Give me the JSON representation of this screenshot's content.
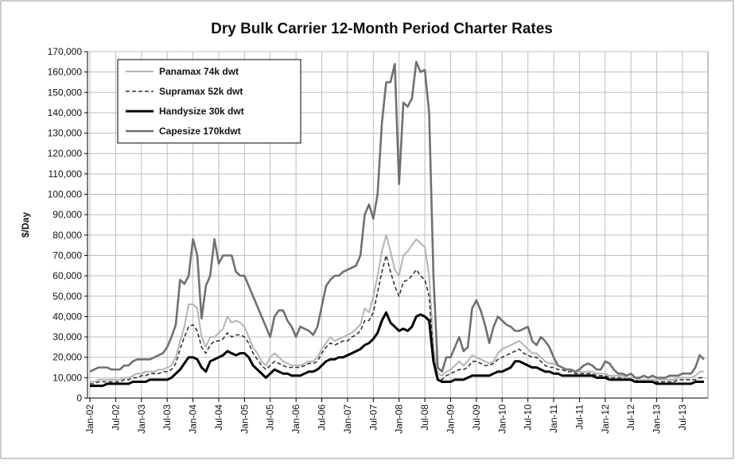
{
  "chart_data": {
    "type": "line",
    "title": "Dry Bulk Carrier 12-Month Period Charter Rates",
    "y_label": "$/Day",
    "grid": true,
    "legend": "top-left",
    "categories": [
      "Jan-02",
      null,
      null,
      null,
      null,
      null,
      "Jul-02",
      null,
      null,
      null,
      null,
      null,
      "Jan-03",
      null,
      null,
      null,
      null,
      null,
      "Jul-03",
      null,
      null,
      null,
      null,
      null,
      "Jan-04",
      null,
      null,
      null,
      null,
      null,
      "Jul-04",
      null,
      null,
      null,
      null,
      null,
      "Jan-05",
      null,
      null,
      null,
      null,
      null,
      "Jul-05",
      null,
      null,
      null,
      null,
      null,
      "Jan-06",
      null,
      null,
      null,
      null,
      null,
      "Jul-06",
      null,
      null,
      null,
      null,
      null,
      "Jan-07",
      null,
      null,
      null,
      null,
      null,
      "Jul-07",
      null,
      null,
      null,
      null,
      null,
      "Jan-08",
      null,
      null,
      null,
      null,
      null,
      "Jul-08",
      null,
      null,
      null,
      null,
      null,
      "Jan-09",
      null,
      null,
      null,
      null,
      null,
      "Jul-09",
      null,
      null,
      null,
      null,
      null,
      "Jan-10",
      null,
      null,
      null,
      null,
      null,
      "Jul-10",
      null,
      null,
      null,
      null,
      null,
      "Jan-11",
      null,
      null,
      null,
      null,
      null,
      "Jul-11",
      null,
      null,
      null,
      null,
      null,
      "Jan-12",
      null,
      null,
      null,
      null,
      null,
      "Jul-12",
      null,
      null,
      null,
      null,
      null,
      "Jan-13",
      null,
      null,
      null,
      null,
      null,
      "Jul-13",
      null,
      null,
      null,
      null,
      null
    ],
    "ylim": [
      0,
      170000
    ],
    "yticks": [
      {
        "value": 0,
        "label": "0"
      },
      {
        "value": 10000,
        "label": "10,000"
      },
      {
        "value": 20000,
        "label": "20,000"
      },
      {
        "value": 30000,
        "label": "30,000"
      },
      {
        "value": 40000,
        "label": "40,000"
      },
      {
        "value": 50000,
        "label": "50,000"
      },
      {
        "value": 60000,
        "label": "60,000"
      },
      {
        "value": 70000,
        "label": "70,000"
      },
      {
        "value": 80000,
        "label": "80,000"
      },
      {
        "value": 90000,
        "label": "90,000"
      },
      {
        "value": 100000,
        "label": "100,000"
      },
      {
        "value": 110000,
        "label": "110,000"
      },
      {
        "value": 120000,
        "label": "120,000"
      },
      {
        "value": 130000,
        "label": "130,000"
      },
      {
        "value": 140000,
        "label": "140,000"
      },
      {
        "value": 150000,
        "label": "150,000"
      },
      {
        "value": 160000,
        "label": "160,000"
      },
      {
        "value": 170000,
        "label": "170,000"
      }
    ],
    "series": [
      {
        "name": "Panamax 74k dwt",
        "color": "#b4b4b4",
        "dashed": false,
        "values": [
          8000,
          8000,
          9000,
          9000,
          9000,
          9000,
          9000,
          9000,
          10000,
          10000,
          11000,
          12000,
          12000,
          13000,
          13000,
          13000,
          14000,
          14000,
          15000,
          16000,
          20000,
          28000,
          35000,
          46000,
          46000,
          44000,
          30000,
          25000,
          30000,
          30000,
          32000,
          34000,
          40000,
          37000,
          38000,
          37000,
          35000,
          30000,
          25000,
          22000,
          18000,
          16000,
          20000,
          22000,
          20000,
          18000,
          17000,
          16000,
          16000,
          16000,
          17000,
          18000,
          18000,
          20000,
          24000,
          27000,
          30000,
          28000,
          29000,
          30000,
          31000,
          32000,
          34000,
          36000,
          44000,
          42000,
          50000,
          60000,
          72000,
          80000,
          72000,
          63000,
          60000,
          70000,
          72000,
          75000,
          78000,
          76000,
          74000,
          60000,
          25000,
          12000,
          11000,
          13000,
          14000,
          16000,
          18000,
          16000,
          18000,
          21000,
          20000,
          19000,
          18000,
          17000,
          18000,
          22000,
          24000,
          25000,
          26000,
          27000,
          28000,
          26000,
          24000,
          22000,
          22000,
          20000,
          18000,
          17000,
          17000,
          16000,
          15000,
          14000,
          14000,
          13000,
          13000,
          13000,
          13000,
          13000,
          12000,
          12000,
          12000,
          11000,
          11000,
          11000,
          11000,
          10000,
          10000,
          10000,
          9000,
          9000,
          9000,
          9000,
          9000,
          9000,
          9000,
          9000,
          9000,
          10000,
          10000,
          10000,
          10000,
          11000,
          13000,
          13000
        ]
      },
      {
        "name": "Supramax 52k dwt",
        "color": "#333333",
        "dashed": true,
        "values": [
          7000,
          7000,
          8000,
          8000,
          8000,
          8000,
          8000,
          8000,
          9000,
          9000,
          10000,
          10000,
          11000,
          11000,
          12000,
          12000,
          12000,
          13000,
          13000,
          14000,
          17000,
          24000,
          30000,
          35000,
          36000,
          33000,
          25000,
          22000,
          26000,
          28000,
          28000,
          29000,
          32000,
          30000,
          31000,
          31000,
          30000,
          27000,
          22000,
          19000,
          16000,
          14000,
          16000,
          18000,
          17000,
          16000,
          15000,
          15000,
          15000,
          15000,
          16000,
          17000,
          17000,
          18000,
          22000,
          25000,
          27000,
          26000,
          27000,
          28000,
          28000,
          30000,
          31000,
          33000,
          38000,
          38000,
          42000,
          52000,
          62000,
          70000,
          62000,
          55000,
          50000,
          57000,
          58000,
          60000,
          63000,
          60000,
          58000,
          50000,
          20000,
          10000,
          9000,
          11000,
          12000,
          13000,
          14000,
          14000,
          15000,
          18000,
          18000,
          17000,
          16000,
          16000,
          17000,
          19000,
          20000,
          21000,
          22000,
          23000,
          24000,
          22000,
          21000,
          20000,
          20000,
          18000,
          16000,
          15000,
          15000,
          14000,
          14000,
          13000,
          13000,
          12000,
          12000,
          12000,
          12000,
          12000,
          11000,
          11000,
          11000,
          10000,
          10000,
          10000,
          10000,
          9000,
          9000,
          9000,
          8000,
          8000,
          8000,
          8000,
          8000,
          8000,
          8000,
          8000,
          8000,
          9000,
          9000,
          9000,
          9000,
          9000,
          10000,
          10000
        ]
      },
      {
        "name": "Handysize 30k dwt",
        "color": "#000000",
        "dashed": false,
        "values": [
          6000,
          6000,
          6000,
          6000,
          7000,
          7000,
          7000,
          7000,
          7000,
          7000,
          8000,
          8000,
          8000,
          8000,
          9000,
          9000,
          9000,
          9000,
          9000,
          10000,
          12000,
          14000,
          17000,
          20000,
          20000,
          19000,
          15000,
          13000,
          18000,
          19000,
          20000,
          21000,
          23000,
          22000,
          21000,
          22000,
          22000,
          20000,
          16000,
          14000,
          12000,
          10000,
          12000,
          14000,
          13000,
          12000,
          12000,
          11000,
          11000,
          11000,
          12000,
          13000,
          13000,
          14000,
          16000,
          18000,
          19000,
          19000,
          20000,
          20000,
          21000,
          22000,
          23000,
          24000,
          26000,
          27000,
          29000,
          32000,
          38000,
          42000,
          37000,
          35000,
          33000,
          34000,
          33000,
          35000,
          40000,
          41000,
          40000,
          38000,
          18000,
          9000,
          8000,
          8000,
          8000,
          9000,
          9000,
          9000,
          10000,
          11000,
          11000,
          11000,
          11000,
          11000,
          12000,
          13000,
          13000,
          14000,
          15000,
          18000,
          18000,
          17000,
          16000,
          15000,
          15000,
          14000,
          13000,
          13000,
          12000,
          12000,
          11000,
          11000,
          11000,
          11000,
          11000,
          11000,
          11000,
          11000,
          10000,
          10000,
          10000,
          9000,
          9000,
          9000,
          9000,
          9000,
          9000,
          8000,
          8000,
          8000,
          8000,
          8000,
          7000,
          7000,
          7000,
          7000,
          7000,
          7000,
          7000,
          7000,
          7000,
          8000,
          8000,
          8000
        ]
      },
      {
        "name": "Capesize 170kdwt",
        "color": "#707070",
        "dashed": false,
        "values": [
          13000,
          14000,
          15000,
          15000,
          15000,
          14000,
          14000,
          14000,
          16000,
          16000,
          18000,
          19000,
          19000,
          19000,
          19000,
          20000,
          21000,
          22000,
          25000,
          30000,
          36000,
          58000,
          56000,
          60000,
          78000,
          70000,
          39000,
          55000,
          60000,
          78000,
          66000,
          70000,
          70000,
          70000,
          62000,
          60000,
          60000,
          55000,
          50000,
          45000,
          40000,
          35000,
          30000,
          40000,
          43000,
          43000,
          38000,
          35000,
          30000,
          35000,
          34000,
          33000,
          31000,
          35000,
          45000,
          55000,
          58000,
          60000,
          60000,
          62000,
          63000,
          64000,
          65000,
          70000,
          90000,
          95000,
          88000,
          100000,
          135000,
          155000,
          155000,
          164000,
          105000,
          145000,
          143000,
          147000,
          165000,
          160000,
          161000,
          140000,
          60000,
          15000,
          13000,
          20000,
          20000,
          25000,
          30000,
          23000,
          25000,
          44000,
          48000,
          43000,
          36000,
          27000,
          35000,
          40000,
          38000,
          36000,
          35000,
          33000,
          33000,
          34000,
          35000,
          28000,
          26000,
          30000,
          28000,
          25000,
          20000,
          16000,
          15000,
          14000,
          14000,
          13000,
          14000,
          16000,
          17000,
          16000,
          14000,
          14000,
          18000,
          17000,
          14000,
          12000,
          12000,
          11000,
          12000,
          10000,
          10000,
          11000,
          10000,
          11000,
          10000,
          10000,
          10000,
          11000,
          11000,
          11000,
          12000,
          12000,
          12000,
          15000,
          21000,
          19000
        ]
      }
    ]
  }
}
